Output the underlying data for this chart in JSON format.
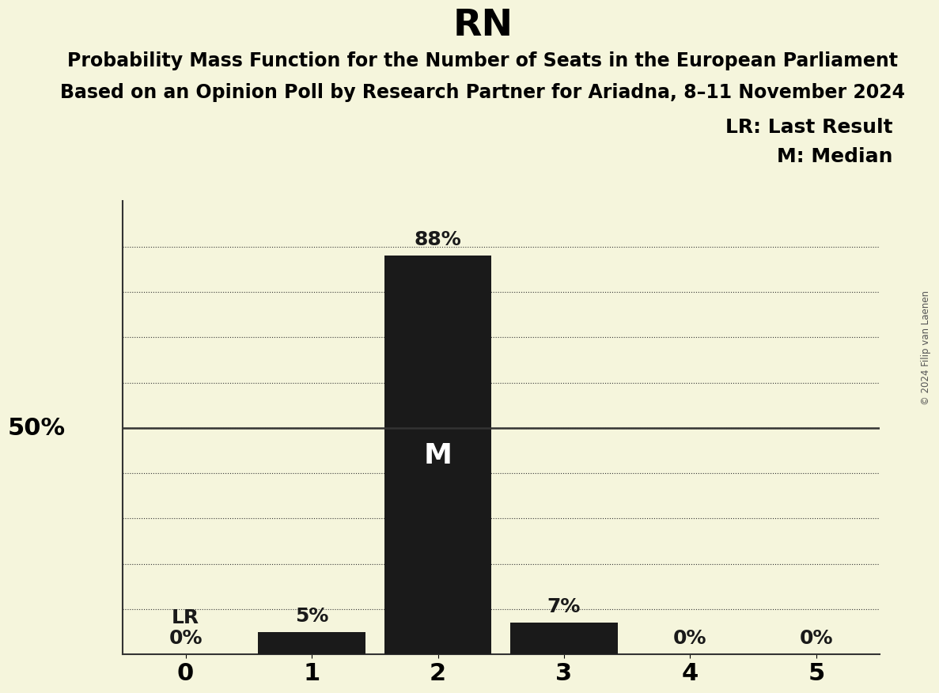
{
  "title": "RN",
  "subtitle1": "Probability Mass Function for the Number of Seats in the European Parliament",
  "subtitle2": "Based on an Opinion Poll by Research Partner for Ariadna, 8–11 November 2024",
  "copyright": "© 2024 Filip van Laenen",
  "categories": [
    0,
    1,
    2,
    3,
    4,
    5
  ],
  "values": [
    0,
    5,
    88,
    7,
    0,
    0
  ],
  "bar_color": "#1a1a1a",
  "background_color": "#f5f5dc",
  "ylabel_50": "50%",
  "median_seat": 2,
  "last_result_seat": 0,
  "legend_lr": "LR: Last Result",
  "legend_m": "M: Median",
  "xlim": [
    -0.5,
    5.5
  ],
  "ylim": [
    0,
    100
  ],
  "title_fontsize": 34,
  "subtitle_fontsize": 17,
  "bar_label_fontsize": 18,
  "axis_tick_fontsize": 22,
  "legend_fontsize": 18,
  "fifty_label_fontsize": 22,
  "median_label_fontsize": 26
}
